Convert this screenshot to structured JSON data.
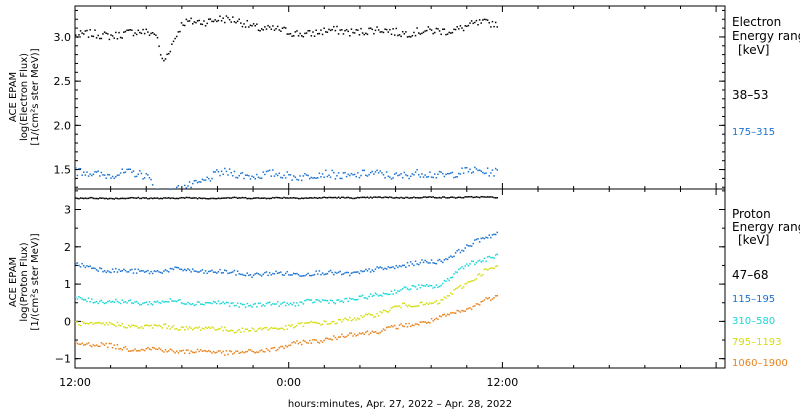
{
  "xlabel": "hours:minutes, Apr. 27, 2022 – Apr. 28, 2022",
  "x_ticks": [
    "12:00",
    "0:00",
    "12:00"
  ],
  "x_tick_hours": [
    0,
    12,
    24
  ],
  "x_range_hours": [
    0,
    36.5
  ],
  "data_end_hours": 23.7,
  "chart_data": [
    {
      "type": "scatter",
      "panel": "electron",
      "ylabel_lines": [
        "ACE EPAM",
        "log(Electron Flux)",
        "[1/(cm²s ster MeV)]"
      ],
      "ylim": [
        1.28,
        3.35
      ],
      "yticks": [
        1.5,
        2.0,
        2.5,
        3.0
      ],
      "ytick_labels": [
        "1.5",
        "2.0",
        "2.5",
        "3.0"
      ],
      "legend_title": [
        "Electron",
        "Energy ranges",
        "[keV]"
      ],
      "series": [
        {
          "name": "38–53",
          "color": "#000000",
          "x_hours": [
            0,
            4.5,
            4.9,
            6,
            8,
            12,
            16,
            20,
            23.7
          ],
          "values": [
            3.02,
            3.06,
            2.73,
            3.15,
            3.22,
            3.05,
            3.08,
            3.06,
            3.18
          ]
        },
        {
          "name": "175–315",
          "color": "#1a73d0",
          "x_hours": [
            0,
            4,
            4.9,
            8,
            12,
            16,
            20,
            23.7
          ],
          "values": [
            1.47,
            1.45,
            1.2,
            1.46,
            1.44,
            1.45,
            1.45,
            1.5
          ]
        }
      ]
    },
    {
      "type": "scatter",
      "panel": "proton",
      "ylabel_lines": [
        "ACE EPAM",
        "log(Proton Flux)",
        "[1/(cm²s ster MeV)]"
      ],
      "ylim": [
        -1.25,
        3.55
      ],
      "yticks": [
        -1,
        0,
        1,
        2,
        3
      ],
      "ytick_labels": [
        "−1",
        "0",
        "1",
        "2",
        "3"
      ],
      "legend_title": [
        "Proton",
        "Energy ranges",
        "[keV]"
      ],
      "series": [
        {
          "name": "47–68",
          "color": "#000000",
          "x_hours": [
            0,
            12,
            23.7
          ],
          "values": [
            3.32,
            3.33,
            3.35
          ]
        },
        {
          "name": "115–195",
          "color": "#1a73d0",
          "x_hours": [
            0,
            3,
            6,
            10,
            12,
            16,
            18,
            20.5,
            22,
            23,
            23.7
          ],
          "values": [
            1.52,
            1.34,
            1.4,
            1.28,
            1.3,
            1.32,
            1.5,
            1.65,
            2.0,
            2.3,
            2.4
          ]
        },
        {
          "name": "310–580",
          "color": "#19d6d6",
          "x_hours": [
            0,
            3,
            6,
            10,
            12,
            16,
            18,
            20.5,
            22,
            23,
            23.7
          ],
          "values": [
            0.62,
            0.52,
            0.55,
            0.45,
            0.5,
            0.62,
            0.85,
            1.0,
            1.55,
            1.7,
            1.8
          ]
        },
        {
          "name": "795–1193",
          "color": "#d4dc0c",
          "x_hours": [
            0,
            3,
            6,
            10,
            12,
            16,
            18,
            20.5,
            22,
            23,
            23.7
          ],
          "values": [
            -0.02,
            -0.1,
            -0.15,
            -0.22,
            -0.12,
            0.1,
            0.4,
            0.55,
            1.05,
            1.4,
            1.45
          ]
        },
        {
          "name": "1060–1900",
          "color": "#e8821c",
          "x_hours": [
            0,
            3,
            6,
            10,
            12,
            16,
            18,
            20.5,
            22,
            23,
            23.7
          ],
          "values": [
            -0.55,
            -0.7,
            -0.78,
            -0.82,
            -0.62,
            -0.3,
            -0.15,
            0.1,
            0.35,
            0.6,
            0.65
          ]
        }
      ]
    }
  ]
}
